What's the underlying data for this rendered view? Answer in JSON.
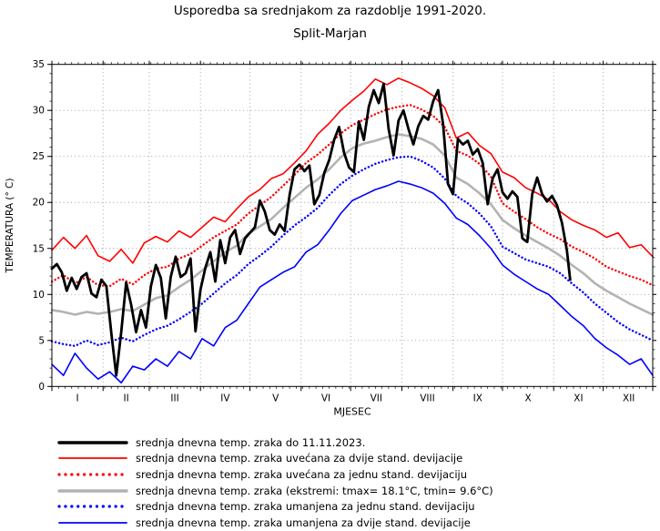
{
  "title": {
    "line1": "Usporedba sa srednjakom za razdoblje 1991-2020.",
    "line2": "Split-Marjan"
  },
  "axes": {
    "ylabel": "TEMPERATURA (° C)",
    "xlabel": "MJESEC",
    "yticks": [
      0,
      5,
      10,
      15,
      20,
      25,
      30,
      35
    ],
    "xticklabels": [
      "I",
      "II",
      "III",
      "IV",
      "V",
      "VI",
      "VII",
      "VIII",
      "IX",
      "X",
      "XI",
      "XII"
    ]
  },
  "chart_data": {
    "type": "line",
    "title": "Usporedba sa srednjakom za razdoblje 1991-2020. Split-Marjan",
    "xlabel": "MJESEC",
    "ylabel": "TEMPERATURA (° C)",
    "ylim": [
      0,
      35
    ],
    "x_unit": "day_of_year",
    "x_range_days": [
      1,
      365
    ],
    "month_boundaries_doy": [
      32,
      60,
      91,
      121,
      152,
      182,
      213,
      244,
      274,
      305,
      335
    ],
    "grid": "dotted",
    "legend_position": "bottom",
    "series": [
      {
        "name": "srednja dnevna temp. zraka do 11.11.2023.",
        "color": "#000000",
        "style": "solid",
        "width": 2.8,
        "start_day": 1,
        "step_days": 3,
        "end_day": 315,
        "values": [
          12.8,
          13.3,
          12.4,
          10.4,
          11.8,
          10.6,
          11.9,
          12.3,
          10.1,
          9.7,
          11.6,
          10.9,
          5.8,
          1.2,
          5.9,
          11.3,
          8.9,
          5.9,
          8.3,
          6.4,
          10.9,
          13.2,
          11.8,
          7.4,
          11.9,
          14.1,
          11.9,
          12.3,
          13.9,
          6.0,
          10.5,
          12.9,
          14.6,
          11.4,
          15.9,
          13.4,
          16.2,
          17.0,
          14.4,
          16.1,
          16.7,
          17.3,
          20.2,
          19.0,
          17.0,
          16.5,
          17.6,
          16.9,
          20.8,
          23.6,
          24.1,
          23.4,
          24.0,
          19.8,
          20.8,
          23.2,
          24.6,
          26.8,
          28.2,
          25.4,
          23.8,
          23.3,
          28.8,
          26.8,
          30.4,
          32.2,
          30.8,
          32.9,
          28.0,
          25.1,
          28.9,
          30.0,
          28.0,
          26.3,
          28.3,
          29.4,
          29.0,
          31.0,
          32.2,
          28.5,
          22.0,
          20.9,
          26.9,
          26.3,
          26.7,
          25.2,
          25.8,
          24.3,
          19.8,
          22.6,
          23.6,
          21.1,
          20.4,
          21.2,
          20.6,
          16.1,
          15.7,
          20.9,
          22.7,
          20.9,
          20.1,
          20.7,
          19.7,
          17.8,
          14.8,
          11.6
        ]
      },
      {
        "name": "srednja dnevna temp. zraka uvećana za dvije stand. devijacije",
        "color": "#ff0000",
        "style": "solid",
        "width": 1.6,
        "start_day": 1,
        "step_days": 7,
        "end_day": 365,
        "values": [
          14.8,
          16.2,
          15.0,
          16.4,
          14.2,
          13.6,
          14.9,
          13.4,
          15.6,
          16.3,
          15.7,
          16.9,
          16.2,
          17.3,
          18.4,
          17.9,
          19.3,
          20.6,
          21.4,
          22.6,
          23.1,
          24.3,
          25.6,
          27.4,
          28.6,
          30.0,
          31.1,
          32.1,
          33.4,
          32.8,
          33.5,
          33.0,
          32.4,
          31.6,
          30.3,
          27.0,
          27.6,
          26.2,
          25.3,
          23.3,
          22.7,
          21.6,
          21.0,
          20.3,
          19.0,
          18.1,
          17.5,
          17.0,
          16.2,
          16.7,
          15.1,
          15.4,
          14.1
        ]
      },
      {
        "name": "srednja dnevna temp. zraka uvećana za jednu stand. devijaciju",
        "color": "#ff0000",
        "style": "dotted",
        "width": 2.4,
        "start_day": 1,
        "step_days": 7,
        "end_day": 365,
        "values": [
          11.4,
          12.1,
          11.2,
          11.9,
          11.0,
          10.9,
          11.7,
          11.1,
          12.1,
          12.8,
          13.0,
          13.9,
          14.4,
          15.3,
          16.2,
          16.9,
          17.6,
          18.8,
          19.7,
          20.6,
          21.8,
          23.0,
          24.3,
          25.2,
          26.3,
          27.5,
          28.4,
          29.0,
          29.6,
          30.1,
          30.4,
          30.6,
          30.1,
          29.4,
          28.2,
          25.6,
          25.1,
          24.2,
          22.8,
          19.9,
          19.0,
          18.2,
          17.3,
          16.6,
          16.0,
          15.2,
          14.6,
          13.9,
          13.0,
          12.5,
          12.0,
          11.6,
          11.0
        ]
      },
      {
        "name": "srednja dnevna temp. zraka (ekstremi: tmax= 18.1°C, tmin= 9.6°C)",
        "color": "#b3b3b3",
        "style": "solid",
        "width": 2.6,
        "start_day": 1,
        "step_days": 7,
        "end_day": 365,
        "values": [
          8.3,
          8.1,
          7.8,
          8.1,
          7.9,
          8.1,
          8.4,
          8.2,
          8.9,
          9.6,
          9.9,
          10.8,
          11.6,
          12.6,
          13.6,
          14.6,
          15.3,
          16.6,
          17.4,
          18.2,
          19.4,
          20.5,
          21.6,
          22.5,
          23.6,
          24.9,
          25.9,
          26.4,
          26.7,
          27.1,
          27.4,
          27.2,
          26.9,
          26.3,
          25.1,
          22.7,
          22.0,
          21.0,
          19.8,
          18.1,
          17.2,
          16.4,
          15.7,
          15.0,
          14.2,
          13.2,
          12.3,
          11.2,
          10.4,
          9.7,
          9.0,
          8.4,
          7.8
        ]
      },
      {
        "name": "srednja dnevna temp. zraka umanjena za jednu stand. devijaciju",
        "color": "#0000ff",
        "style": "dotted",
        "width": 2.4,
        "start_day": 1,
        "step_days": 7,
        "end_day": 365,
        "values": [
          4.9,
          4.6,
          4.4,
          5.0,
          4.5,
          4.8,
          5.3,
          4.9,
          5.6,
          6.2,
          6.6,
          7.3,
          8.1,
          9.0,
          10.1,
          11.2,
          12.1,
          13.3,
          14.2,
          15.2,
          16.4,
          17.5,
          18.4,
          19.4,
          20.8,
          22.0,
          22.9,
          23.6,
          24.2,
          24.6,
          24.9,
          25.0,
          24.5,
          23.8,
          22.6,
          20.7,
          19.9,
          18.8,
          17.4,
          15.2,
          14.5,
          13.8,
          13.4,
          13.0,
          12.3,
          11.2,
          10.2,
          9.0,
          8.0,
          7.0,
          6.2,
          5.6,
          5.0
        ]
      },
      {
        "name": "srednja dnevna temp. zraka umanjena za dvije stand. devijacije",
        "color": "#0000ff",
        "style": "solid",
        "width": 1.6,
        "start_day": 1,
        "step_days": 7,
        "end_day": 365,
        "values": [
          2.4,
          1.2,
          3.6,
          2.0,
          0.8,
          1.6,
          0.4,
          2.2,
          1.8,
          3.0,
          2.2,
          3.8,
          3.0,
          5.2,
          4.4,
          6.4,
          7.2,
          9.0,
          10.8,
          11.6,
          12.4,
          13.0,
          14.6,
          15.4,
          17.0,
          18.8,
          20.2,
          20.8,
          21.4,
          21.8,
          22.3,
          22.0,
          21.6,
          21.0,
          19.9,
          18.3,
          17.6,
          16.4,
          15.0,
          13.2,
          12.2,
          11.4,
          10.6,
          10.0,
          8.8,
          7.6,
          6.6,
          5.2,
          4.2,
          3.4,
          2.4,
          3.0,
          1.2
        ]
      }
    ]
  },
  "style": {
    "grid_color": "#999999",
    "frame_color": "#000000",
    "background": "#ffffff"
  }
}
